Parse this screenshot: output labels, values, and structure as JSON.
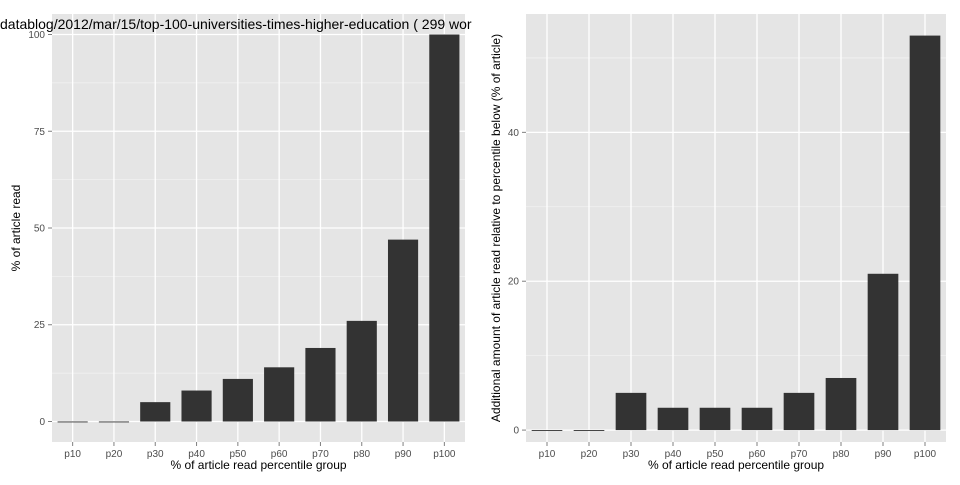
{
  "chart_data": [
    {
      "type": "bar",
      "title": "datablog/2012/mar/15/top-100-universities-times-higher-education ( 299 wor",
      "xlabel": "% of article read percentile group",
      "ylabel": "% of article read",
      "categories": [
        "p10",
        "p20",
        "p30",
        "p40",
        "p50",
        "p60",
        "p70",
        "p80",
        "p90",
        "p100"
      ],
      "values": [
        0,
        0,
        5,
        8,
        11,
        14,
        19,
        26,
        47,
        100
      ],
      "yticks": [
        0,
        25,
        50,
        75,
        100
      ],
      "ylim": [
        -5.3,
        105.3
      ],
      "grid": true
    },
    {
      "type": "bar",
      "title": "",
      "xlabel": "% of article read percentile group",
      "ylabel": "Additional amount of article read relative to percentile below (% of article)",
      "categories": [
        "p10",
        "p20",
        "p30",
        "p40",
        "p50",
        "p60",
        "p70",
        "p80",
        "p90",
        "p100"
      ],
      "values": [
        0,
        0,
        5,
        3,
        3,
        3,
        5,
        7,
        21,
        53
      ],
      "yticks": [
        0,
        20,
        40
      ],
      "ylim": [
        -1.6,
        55.9
      ],
      "grid": true
    }
  ],
  "colors": {
    "panel": "#e5e5e5",
    "grid_major": "#ffffff",
    "grid_minor": "#f2f2f2",
    "bar": "#333333",
    "tick_text": "#4d4d4d",
    "label_text": "#000000"
  }
}
